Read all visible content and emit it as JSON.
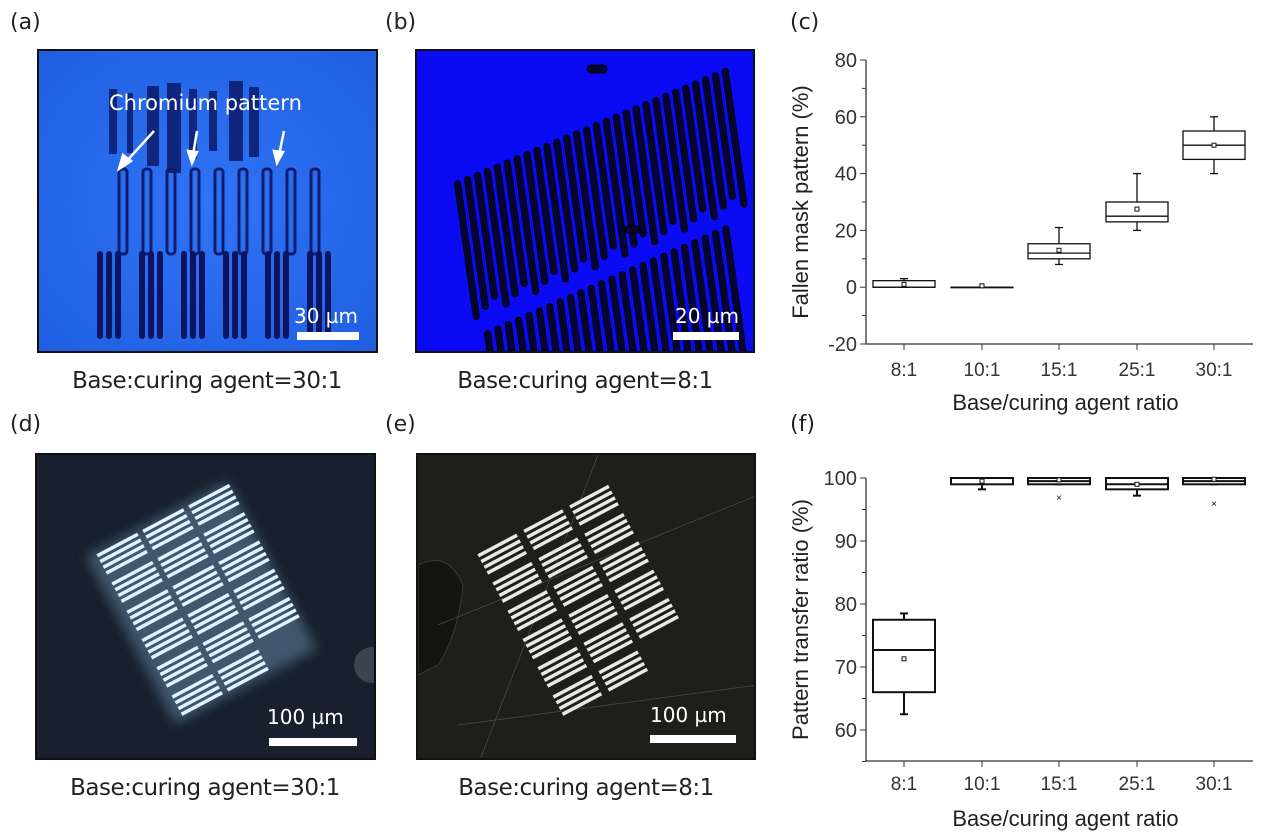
{
  "panels": {
    "a": {
      "label": "(a)",
      "caption": "Base:curing agent=30:1",
      "scale": "30 µm",
      "annotation": "Chromium pattern",
      "bg": "#2a6cf0"
    },
    "b": {
      "label": "(b)",
      "caption": "Base:curing agent=8:1",
      "scale": "20 µm",
      "bg": "#0a0af5"
    },
    "c": {
      "label": "(c)"
    },
    "d": {
      "label": "(d)",
      "caption": "Base:curing agent=30:1",
      "scale": "100 µm",
      "bg": "#17202c"
    },
    "e": {
      "label": "(e)",
      "caption": "Base:curing agent=8:1",
      "scale": "100 µm",
      "bg": "#1e1f16"
    },
    "f": {
      "label": "(f)"
    }
  },
  "chart_data": [
    {
      "type": "box",
      "panel": "c",
      "xlabel": "Base/curing agent ratio",
      "ylabel": "Fallen mask pattern (%)",
      "categories": [
        "8:1",
        "10:1",
        "15:1",
        "25:1",
        "30:1"
      ],
      "ylim": [
        -20,
        80
      ],
      "yticks": [
        -20,
        0,
        20,
        40,
        60,
        80
      ],
      "boxes": [
        {
          "min": 0,
          "q1": 0,
          "median": 0,
          "q3": 2.3,
          "max": 3,
          "mean": 1
        },
        {
          "min": 0,
          "q1": 0,
          "median": 0,
          "q3": 0,
          "max": 0,
          "mean": 0.5
        },
        {
          "min": 8,
          "q1": 10,
          "median": 12,
          "q3": 15.3,
          "max": 21,
          "mean": 13
        },
        {
          "min": 20,
          "q1": 23,
          "median": 25,
          "q3": 30,
          "max": 40,
          "mean": 27.5
        },
        {
          "min": 40,
          "q1": 45,
          "median": 50,
          "q3": 55,
          "max": 60,
          "mean": 50
        }
      ],
      "outliers": [
        [],
        [],
        [],
        [],
        []
      ]
    },
    {
      "type": "box",
      "panel": "f",
      "xlabel": "Base/curing agent ratio",
      "ylabel": "Pattern transfer ratio (%)",
      "categories": [
        "8:1",
        "10:1",
        "15:1",
        "25:1",
        "30:1"
      ],
      "ylim": [
        55,
        100
      ],
      "yticks": [
        60,
        70,
        80,
        90,
        100
      ],
      "boxes": [
        {
          "min": 62.5,
          "q1": 66,
          "median": 72.7,
          "q3": 77.5,
          "max": 78.5,
          "mean": 71.3
        },
        {
          "min": 98.2,
          "q1": 99,
          "median": 100,
          "q3": 100,
          "max": 100,
          "mean": 99.5
        },
        {
          "min": 99,
          "q1": 99,
          "median": 99.5,
          "q3": 100,
          "max": 100,
          "mean": 99.7
        },
        {
          "min": 97.2,
          "q1": 98.2,
          "median": 99,
          "q3": 100,
          "max": 100,
          "mean": 99
        },
        {
          "min": 99,
          "q1": 99,
          "median": 99.5,
          "q3": 100,
          "max": 100,
          "mean": 99.8
        }
      ],
      "outliers": [
        [],
        [],
        [
          97
        ],
        [],
        [
          96
        ]
      ]
    }
  ]
}
